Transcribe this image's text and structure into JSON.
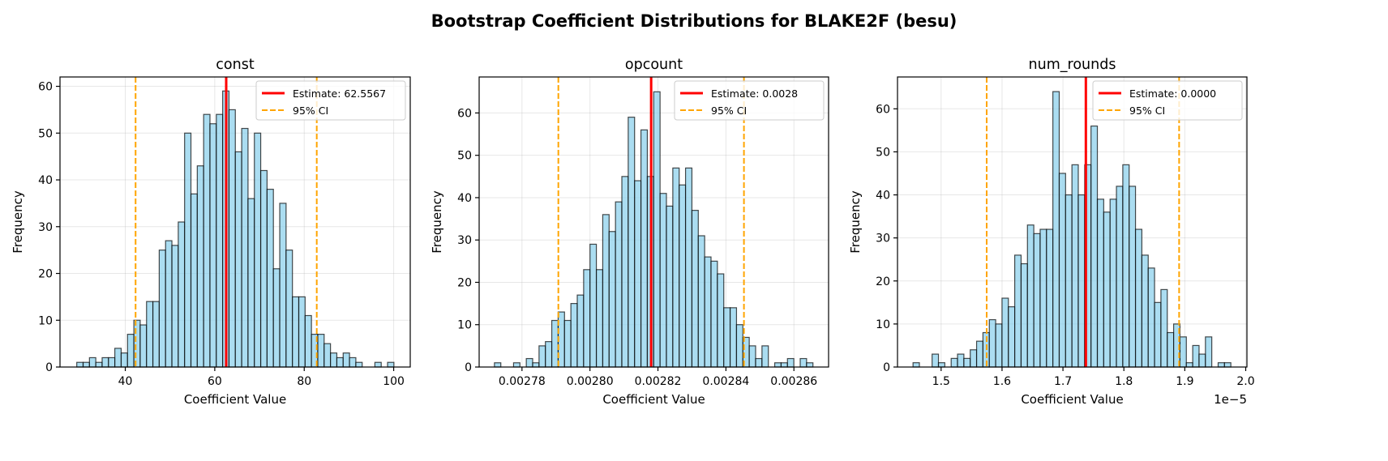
{
  "title": "Bootstrap Coefficient Distributions for BLAKE2F (besu)",
  "chart_data": [
    {
      "type": "bar",
      "title": "const",
      "xlabel": "Coefficient Value",
      "ylabel": "Frequency",
      "bin_range": [
        29.15,
        100.05
      ],
      "counts": [
        1,
        1,
        2,
        1,
        2,
        2,
        4,
        3,
        7,
        10,
        9,
        14,
        14,
        25,
        27,
        26,
        31,
        50,
        37,
        43,
        54,
        52,
        54,
        59,
        55,
        46,
        51,
        36,
        50,
        42,
        38,
        21,
        35,
        25,
        15,
        15,
        11,
        7,
        7,
        5,
        3,
        2,
        3,
        2,
        1,
        0,
        0,
        1,
        0,
        1
      ],
      "estimate": 62.5567,
      "ci": [
        42.3,
        82.8
      ],
      "xlim": [
        25.4,
        103.7
      ],
      "ylim": [
        0,
        62
      ],
      "x_ticks": [
        40,
        60,
        80,
        100
      ],
      "x_tick_labels": [
        "40",
        "60",
        "80",
        "100"
      ],
      "y_ticks": [
        0,
        10,
        20,
        30,
        40,
        50,
        60
      ],
      "y_tick_labels": [
        "0",
        "10",
        "20",
        "30",
        "40",
        "50",
        "60"
      ],
      "x_multiplier_label": "",
      "legend": {
        "position": "top-right",
        "estimate_label": "Estimate: 62.5567",
        "ci_label": "95% CI"
      },
      "grid": true
    },
    {
      "type": "bar",
      "title": "opcount",
      "xlabel": "Coefficient Value",
      "ylabel": "Frequency",
      "bin_range": [
        0.0027719,
        0.0028656
      ],
      "counts": [
        1,
        0,
        0,
        1,
        0,
        2,
        1,
        5,
        6,
        11,
        13,
        11,
        15,
        17,
        23,
        29,
        23,
        36,
        32,
        39,
        45,
        59,
        44,
        56,
        45,
        65,
        41,
        38,
        47,
        43,
        47,
        37,
        31,
        26,
        25,
        22,
        14,
        14,
        10,
        7,
        5,
        2,
        5,
        0,
        1,
        1,
        2,
        0,
        2,
        1
      ],
      "estimate": 0.002818,
      "ci": [
        0.0027907,
        0.0028453
      ],
      "xlim": [
        0.0027674,
        0.0028702
      ],
      "ylim": [
        0,
        68.5
      ],
      "x_ticks": [
        0.00278,
        0.0028,
        0.00282,
        0.00284,
        0.00286
      ],
      "x_tick_labels": [
        "0.00278",
        "0.00280",
        "0.00282",
        "0.00284",
        "0.00286"
      ],
      "y_ticks": [
        0,
        10,
        20,
        30,
        40,
        50,
        60
      ],
      "y_tick_labels": [
        "0",
        "10",
        "20",
        "30",
        "40",
        "50",
        "60"
      ],
      "x_multiplier_label": "",
      "legend": {
        "position": "top-right",
        "estimate_label": "Estimate: 0.0028",
        "ci_label": "95% CI"
      },
      "grid": true
    },
    {
      "type": "bar",
      "title": "num_rounds",
      "xlabel": "Coefficient Value",
      "ylabel": "Frequency",
      "bin_range": [
        1.4539,
        1.9756
      ],
      "counts": [
        1,
        0,
        0,
        3,
        1,
        0,
        2,
        3,
        2,
        4,
        6,
        8,
        11,
        10,
        16,
        14,
        26,
        24,
        33,
        31,
        32,
        32,
        64,
        45,
        40,
        47,
        40,
        47,
        56,
        39,
        36,
        39,
        42,
        47,
        42,
        32,
        26,
        23,
        15,
        18,
        8,
        10,
        7,
        1,
        5,
        3,
        7,
        0,
        1,
        1
      ],
      "estimate": 1.7376,
      "ci": [
        1.5748,
        1.8907
      ],
      "xlim": [
        1.4284,
        2.002
      ],
      "ylim": [
        0,
        67.4
      ],
      "x_ticks": [
        1.5,
        1.6,
        1.7,
        1.8,
        1.9,
        2.0
      ],
      "x_tick_labels": [
        "1.5",
        "1.6",
        "1.7",
        "1.8",
        "1.9",
        "2.0"
      ],
      "y_ticks": [
        0,
        10,
        20,
        30,
        40,
        50,
        60
      ],
      "y_tick_labels": [
        "0",
        "10",
        "20",
        "30",
        "40",
        "50",
        "60"
      ],
      "x_multiplier_label": "1e−5",
      "legend": {
        "position": "top-right",
        "estimate_label": "Estimate: 0.0000",
        "ci_label": "95% CI"
      },
      "grid": true
    }
  ],
  "colors": {
    "bar_fill": "#87ceeb",
    "bar_edge": "#000000",
    "estimate": "#ff0000",
    "ci": "#ffa500",
    "grid": "#b0b0b0"
  }
}
